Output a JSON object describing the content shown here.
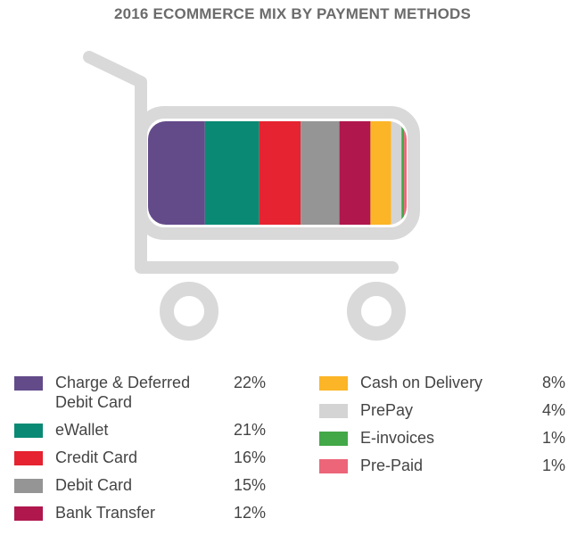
{
  "chart_data": {
    "type": "bar",
    "title": "2016 ECOMMERCE MIX BY PAYMENT METHODS",
    "stacked": true,
    "categories": [
      "Charge & Deferred Debit Card",
      "eWallet",
      "Credit Card",
      "Debit Card",
      "Bank Transfer",
      "Cash on Delivery",
      "PrePay",
      "E-invoices",
      "Pre-Paid"
    ],
    "values": [
      22,
      21,
      16,
      15,
      12,
      8,
      4,
      1,
      1
    ],
    "value_labels": [
      "22%",
      "21%",
      "16%",
      "15%",
      "12%",
      "8%",
      "4%",
      "1%",
      "1%"
    ],
    "colors": [
      "#634b8a",
      "#0a8a74",
      "#e62330",
      "#959595",
      "#b0174d",
      "#fbb526",
      "#d4d4d4",
      "#43a848",
      "#ec6579"
    ],
    "unit": "%",
    "legend_position": "bottom"
  }
}
